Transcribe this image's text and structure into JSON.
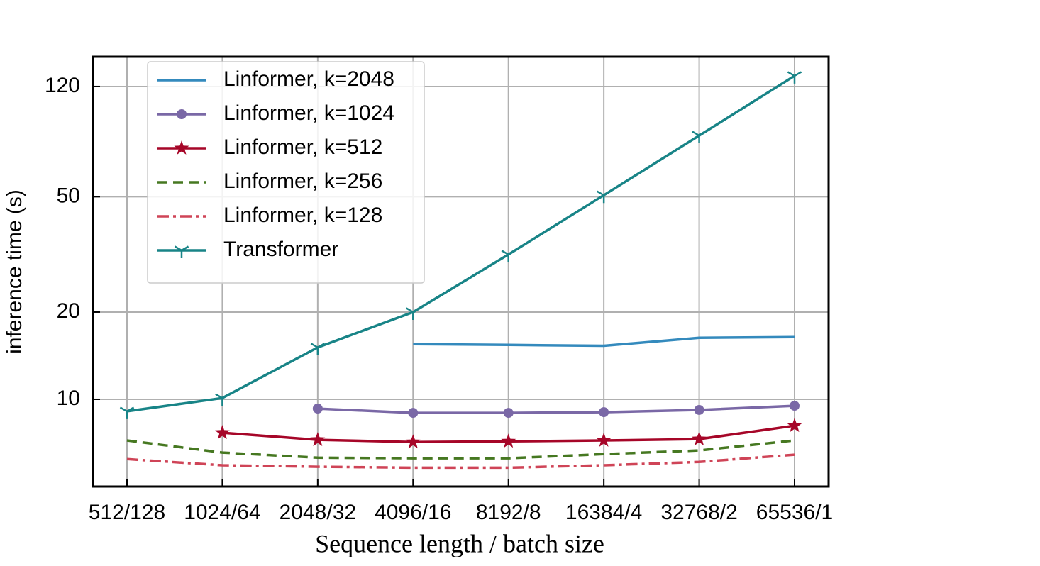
{
  "chart_data": {
    "type": "line",
    "xlabel": "Sequence length / batch size",
    "ylabel": "inference time (s)",
    "categories": [
      "512/128",
      "1024/64",
      "2048/32",
      "4096/16",
      "8192/8",
      "16384/4",
      "32768/2",
      "65536/1"
    ],
    "yscale": "log",
    "ylim": [
      5,
      152
    ],
    "yticks": [
      10,
      20,
      50,
      120
    ],
    "grid": true,
    "legend": "upper left",
    "series": [
      {
        "name": "Linformer, k=2048",
        "color": "#348abd",
        "linestyle": "solid",
        "marker": "none",
        "values": [
          null,
          null,
          null,
          15.5,
          15.4,
          15.3,
          16.3,
          16.4
        ]
      },
      {
        "name": "Linformer, k=1024",
        "color": "#7a68a6",
        "linestyle": "solid",
        "marker": "circle",
        "values": [
          null,
          null,
          9.29,
          8.98,
          8.98,
          9.03,
          9.19,
          9.5
        ]
      },
      {
        "name": "Linformer, k=512",
        "color": "#a60628",
        "linestyle": "solid",
        "marker": "star",
        "values": [
          null,
          7.67,
          7.25,
          7.12,
          7.16,
          7.21,
          7.29,
          8.11
        ]
      },
      {
        "name": "Linformer, k=256",
        "color": "#467821",
        "linestyle": "dashed",
        "marker": "none",
        "values": [
          7.21,
          6.55,
          6.29,
          6.26,
          6.26,
          6.47,
          6.66,
          7.21
        ]
      },
      {
        "name": "Linformer, k=128",
        "color": "#cf4457",
        "linestyle": "dashdot",
        "marker": "none",
        "values": [
          6.22,
          5.92,
          5.85,
          5.81,
          5.81,
          5.92,
          6.08,
          6.44
        ]
      },
      {
        "name": "Transformer",
        "color": "#188487",
        "linestyle": "solid",
        "marker": "tri",
        "values": [
          9.09,
          10.1,
          15.1,
          20.0,
          31.6,
          50.6,
          81.3,
          130.6
        ]
      }
    ]
  }
}
